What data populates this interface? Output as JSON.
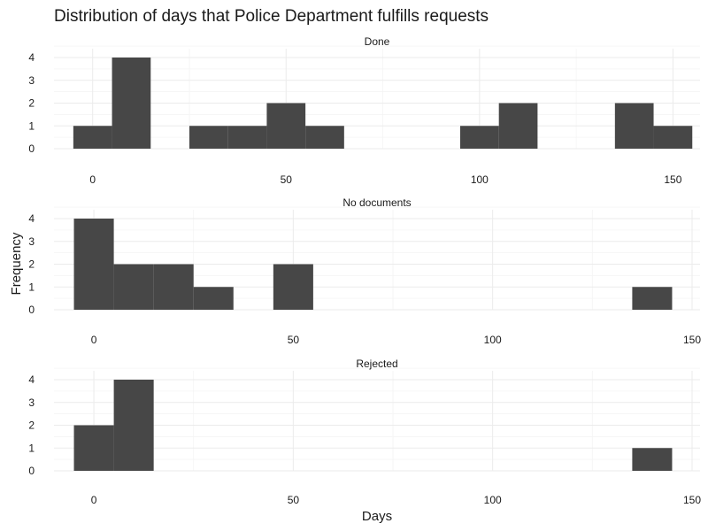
{
  "chart_data": {
    "type": "bar",
    "title": "Distribution of days that Police Department fulfills requests",
    "xlabel": "Days",
    "ylabel": "Frequency",
    "grid": true,
    "bin_width": 10,
    "panels": [
      {
        "name": "Done",
        "xlim": [
          -10,
          157
        ],
        "ylim": [
          0,
          4
        ],
        "x_ticks": [
          0,
          50,
          100,
          150
        ],
        "y_ticks": [
          0,
          1,
          2,
          3,
          4
        ],
        "bins": [
          {
            "x0": -5,
            "x1": 5,
            "count": 1
          },
          {
            "x0": 5,
            "x1": 15,
            "count": 4
          },
          {
            "x0": 25,
            "x1": 35,
            "count": 1
          },
          {
            "x0": 35,
            "x1": 45,
            "count": 1
          },
          {
            "x0": 45,
            "x1": 55,
            "count": 2
          },
          {
            "x0": 55,
            "x1": 65,
            "count": 1
          },
          {
            "x0": 95,
            "x1": 105,
            "count": 1
          },
          {
            "x0": 105,
            "x1": 115,
            "count": 2
          },
          {
            "x0": 135,
            "x1": 145,
            "count": 2
          },
          {
            "x0": 145,
            "x1": 155,
            "count": 1
          }
        ]
      },
      {
        "name": "No documents",
        "xlim": [
          -10,
          152
        ],
        "ylim": [
          0,
          4
        ],
        "x_ticks": [
          0,
          50,
          100,
          150
        ],
        "y_ticks": [
          0,
          1,
          2,
          3,
          4
        ],
        "bins": [
          {
            "x0": -5,
            "x1": 5,
            "count": 4
          },
          {
            "x0": 5,
            "x1": 15,
            "count": 2
          },
          {
            "x0": 15,
            "x1": 25,
            "count": 2
          },
          {
            "x0": 25,
            "x1": 35,
            "count": 1
          },
          {
            "x0": 45,
            "x1": 55,
            "count": 2
          },
          {
            "x0": 135,
            "x1": 145,
            "count": 1
          }
        ]
      },
      {
        "name": "Rejected",
        "xlim": [
          -10,
          152
        ],
        "ylim": [
          0,
          4
        ],
        "x_ticks": [
          0,
          50,
          100,
          150
        ],
        "y_ticks": [
          0,
          1,
          2,
          3,
          4
        ],
        "bins": [
          {
            "x0": -5,
            "x1": 5,
            "count": 2
          },
          {
            "x0": 5,
            "x1": 15,
            "count": 4
          },
          {
            "x0": 135,
            "x1": 145,
            "count": 1
          }
        ]
      }
    ]
  },
  "colors": {
    "bar": "#474747",
    "grid_major": "#ebebeb",
    "grid_minor": "#f4f4f4",
    "text": "#1a1a1a"
  }
}
